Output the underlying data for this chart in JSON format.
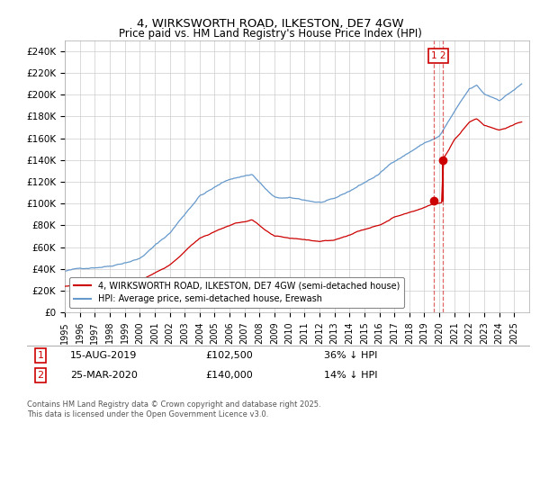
{
  "title": "4, WIRKSWORTH ROAD, ILKESTON, DE7 4GW",
  "subtitle": "Price paid vs. HM Land Registry's House Price Index (HPI)",
  "ylabel_ticks": [
    "£0",
    "£20K",
    "£40K",
    "£60K",
    "£80K",
    "£100K",
    "£120K",
    "£140K",
    "£160K",
    "£180K",
    "£200K",
    "£220K",
    "£240K"
  ],
  "ytick_values": [
    0,
    20000,
    40000,
    60000,
    80000,
    100000,
    120000,
    140000,
    160000,
    180000,
    200000,
    220000,
    240000
  ],
  "ylim": [
    0,
    250000
  ],
  "xlim_start": 1995,
  "xlim_end": 2026,
  "hpi_color": "#6699CC",
  "price_color": "#CC0000",
  "legend_label_price": "4, WIRKSWORTH ROAD, ILKESTON, DE7 4GW (semi-detached house)",
  "legend_label_hpi": "HPI: Average price, semi-detached house, Erewash",
  "transaction1_date": "15-AUG-2019",
  "transaction1_price": "£102,500",
  "transaction1_hpi": "36% ↓ HPI",
  "transaction1_year": 2019.62,
  "transaction1_value": 102500,
  "transaction2_date": "25-MAR-2020",
  "transaction2_price": "£140,000",
  "transaction2_hpi": "14% ↓ HPI",
  "transaction2_year": 2020.23,
  "transaction2_value": 140000,
  "footnote": "Contains HM Land Registry data © Crown copyright and database right 2025.\nThis data is licensed under the Open Government Licence v3.0.",
  "background_color": "#ffffff",
  "grid_color": "#cccccc",
  "hpi_key_points": {
    "1995": 38000,
    "1998": 44000,
    "2000": 52000,
    "2002": 75000,
    "2004": 110000,
    "2006": 125000,
    "2007.5": 130000,
    "2008.5": 115000,
    "2009": 108000,
    "2010": 107000,
    "2012": 103000,
    "2013": 105000,
    "2014": 112000,
    "2016": 128000,
    "2017": 140000,
    "2019": 157000,
    "2020": 163000,
    "2021": 185000,
    "2022": 205000,
    "2022.5": 208000,
    "2023": 200000,
    "2024": 195000,
    "2025.5": 210000
  },
  "price_key_points": {
    "1995": 24000,
    "1998": 27000,
    "2000": 30000,
    "2002": 43000,
    "2004": 68000,
    "2006": 80000,
    "2007.5": 85000,
    "2008.5": 73000,
    "2009": 68000,
    "2010": 66000,
    "2012": 64000,
    "2013": 65000,
    "2014": 70000,
    "2016": 80000,
    "2017": 87000,
    "2019.6": 100000,
    "2020.2": 100500,
    "2020.25": 140000,
    "2021": 158000,
    "2022": 175000,
    "2022.5": 178000,
    "2023": 172000,
    "2024": 168000,
    "2025.5": 175000
  }
}
